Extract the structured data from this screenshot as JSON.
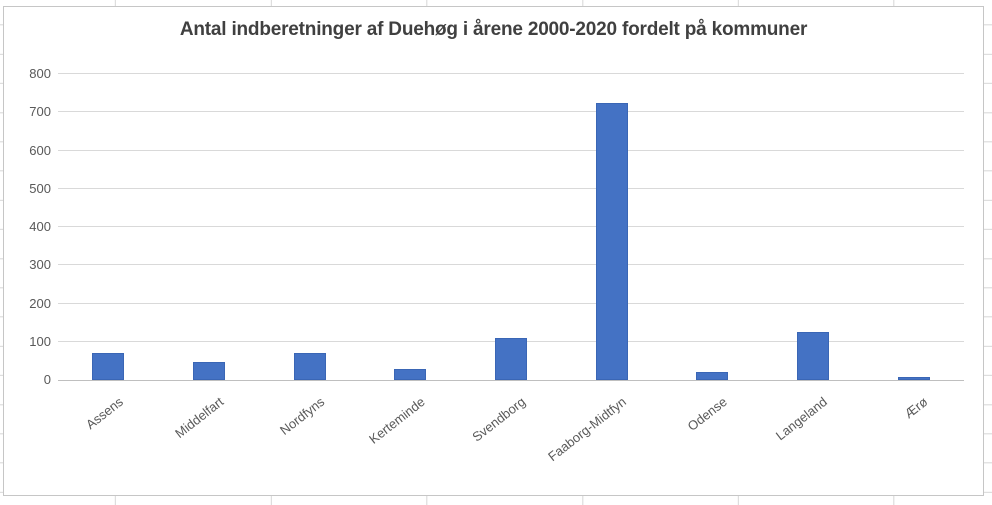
{
  "chart_data": {
    "type": "bar",
    "title": "Antal indberetninger af Duehøg i årene 2000-2020 fordelt på kommuner",
    "categories": [
      "Assens",
      "Middelfart",
      "Nordfyns",
      "Kerteminde",
      "Svendborg",
      "Faaborg-Midtfyn",
      "Odense",
      "Langeland",
      "Ærø"
    ],
    "values": [
      70,
      48,
      70,
      28,
      110,
      725,
      22,
      125,
      7
    ],
    "xlabel": "",
    "ylabel": "",
    "ylim": [
      0,
      800
    ],
    "ytick_interval": 100,
    "ytick_labels": [
      "0",
      "100",
      "200",
      "300",
      "400",
      "500",
      "600",
      "700",
      "800"
    ],
    "grid": true,
    "legend": false,
    "x_label_rotation_deg": -38,
    "colors": {
      "bar_fill": "#4472C4",
      "bar_edge": "#3A66B5",
      "gridline": "#D9D9D9",
      "axis_line": "#BFBFBF",
      "tick_label": "#595959",
      "title": "#404040",
      "chart_border": "#C6C6C6",
      "sheet_gridline": "#D6D6D6"
    }
  }
}
